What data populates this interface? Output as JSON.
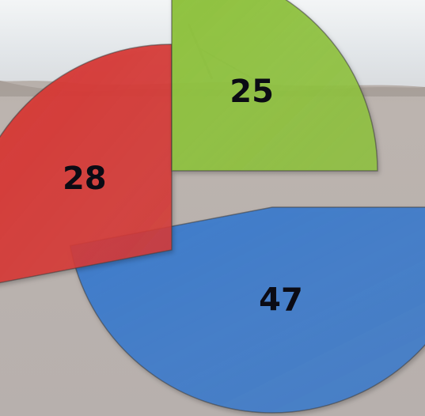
{
  "chart_data": {
    "type": "pie",
    "exploded": true,
    "categories": [
      "",
      "",
      ""
    ],
    "values": [
      47,
      28,
      25
    ],
    "data_labels": [
      "47",
      "28",
      "25"
    ],
    "colors": [
      "#3f7ccb",
      "#d63a37",
      "#8fc23f"
    ],
    "title": "",
    "legend": "none"
  },
  "background": {
    "description_free": true,
    "sky_color": "#eef1f3",
    "ground_color": "#b8b1ad"
  }
}
